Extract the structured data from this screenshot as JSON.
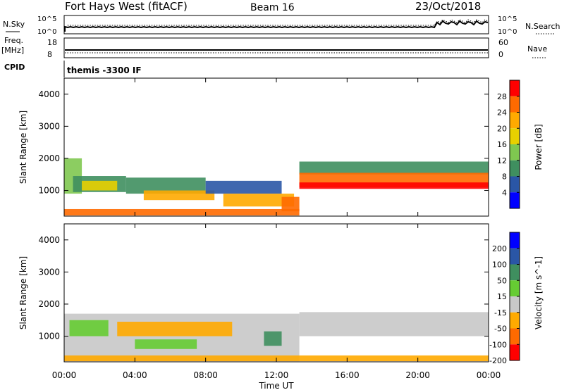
{
  "header": {
    "station": "Fort Hays West (fitACF)",
    "beam": "Beam 16",
    "date": "23/Oct/2018"
  },
  "top_panels": {
    "nsky_label": "N.Sky",
    "nsearch_label": "N.Search",
    "noise_ticks": [
      "10^5",
      "10^0"
    ],
    "freq_label": "Freq.",
    "freq_unit": "[MHz]",
    "freq_ticks": [
      "18",
      "8"
    ],
    "nave_label": "Nave",
    "nave_ticks": [
      "60",
      "0"
    ],
    "cpid_label": "CPID",
    "cpid_value": "themis -3300 IF"
  },
  "chart_data": [
    {
      "type": "heatmap",
      "name": "power",
      "ylabel": "Slant Range [km]",
      "ylim": [
        200,
        4500
      ],
      "yticks": [
        "4000",
        "3000",
        "2000",
        "1000"
      ],
      "yticks_values": [
        4000,
        3000,
        2000,
        1000
      ],
      "x_range_hours": [
        0,
        24
      ],
      "colorbar_label": "Power [dB]",
      "colorbar_ticks": [
        "28",
        "24",
        "20",
        "16",
        "12",
        "8",
        "4"
      ],
      "colorbar_colors": [
        "#ff0000",
        "#ff6a00",
        "#ffaa00",
        "#e8d000",
        "#7fc850",
        "#3f8f5f",
        "#2a56a6",
        "#0000ff"
      ],
      "bands": [
        {
          "h0": 0.0,
          "h1": 1.0,
          "r0": 900,
          "r1": 2000,
          "color": "#7fc850"
        },
        {
          "h0": 0.5,
          "h1": 3.5,
          "r0": 950,
          "r1": 1450,
          "color": "#3f8f5f"
        },
        {
          "h0": 1.0,
          "h1": 3.0,
          "r0": 1000,
          "r1": 1300,
          "color": "#e8d000"
        },
        {
          "h0": 3.5,
          "h1": 8.0,
          "r0": 900,
          "r1": 1400,
          "color": "#3f8f5f"
        },
        {
          "h0": 4.5,
          "h1": 8.5,
          "r0": 700,
          "r1": 1000,
          "color": "#ffaa00"
        },
        {
          "h0": 8.0,
          "h1": 12.3,
          "r0": 900,
          "r1": 1300,
          "color": "#2a56a6"
        },
        {
          "h0": 9.0,
          "h1": 13.0,
          "r0": 500,
          "r1": 900,
          "color": "#ffaa00"
        },
        {
          "h0": 12.3,
          "h1": 13.3,
          "r0": 350,
          "r1": 800,
          "color": "#ff6a00"
        },
        {
          "h0": 13.3,
          "h1": 24.0,
          "r0": 1500,
          "r1": 1900,
          "color": "#3f8f5f"
        },
        {
          "h0": 13.3,
          "h1": 24.0,
          "r0": 1100,
          "r1": 1550,
          "color": "#ff6a00"
        },
        {
          "h0": 13.3,
          "h1": 24.0,
          "r0": 1050,
          "r1": 1250,
          "color": "#ff0000"
        },
        {
          "h0": 0.0,
          "h1": 13.3,
          "r0": 220,
          "r1": 420,
          "color": "#ff6a00"
        }
      ]
    },
    {
      "type": "heatmap",
      "name": "velocity",
      "ylabel": "Slant Range [km]",
      "xlabel": "Time UT",
      "ylim": [
        200,
        4500
      ],
      "yticks": [
        "4000",
        "3000",
        "2000",
        "1000"
      ],
      "yticks_values": [
        4000,
        3000,
        2000,
        1000
      ],
      "x_range_hours": [
        0,
        24
      ],
      "xticks": [
        "00:00",
        "04:00",
        "08:00",
        "12:00",
        "16:00",
        "20:00",
        "00:00"
      ],
      "xticks_values": [
        0,
        4,
        8,
        12,
        16,
        20,
        24
      ],
      "colorbar_label": "Velocity [m s^-1]",
      "colorbar_ticks": [
        "200",
        "100",
        "50",
        "15",
        "-15",
        "-50",
        "-100",
        "-200"
      ],
      "colorbar_colors": [
        "#0000ff",
        "#2a56a6",
        "#3f8f5f",
        "#66cc33",
        "#c8c8c8",
        "#ffaa00",
        "#ff6a00",
        "#ff0000"
      ],
      "bands": [
        {
          "h0": 0.0,
          "h1": 13.3,
          "r0": 220,
          "r1": 1700,
          "color": "#c8c8c8"
        },
        {
          "h0": 0.3,
          "h1": 2.5,
          "r0": 1000,
          "r1": 1500,
          "color": "#66cc33"
        },
        {
          "h0": 3.0,
          "h1": 9.5,
          "r0": 1000,
          "r1": 1450,
          "color": "#ffaa00"
        },
        {
          "h0": 4.0,
          "h1": 7.5,
          "r0": 600,
          "r1": 900,
          "color": "#66cc33"
        },
        {
          "h0": 11.3,
          "h1": 12.3,
          "r0": 700,
          "r1": 1150,
          "color": "#3f8f5f"
        },
        {
          "h0": 13.3,
          "h1": 24.0,
          "r0": 1000,
          "r1": 1750,
          "color": "#c8c8c8"
        },
        {
          "h0": 0.0,
          "h1": 24.0,
          "r0": 220,
          "r1": 400,
          "color": "#ffaa00"
        }
      ]
    }
  ]
}
